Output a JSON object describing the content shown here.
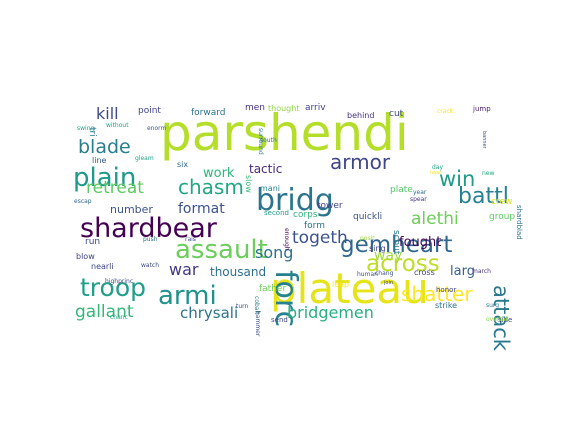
{
  "words": [
    {
      "text": "parshendi",
      "color": "#b5de2b"
    },
    {
      "text": "plateau",
      "color": "#e5e419"
    },
    {
      "text": "bridg",
      "color": "#2c738e"
    },
    {
      "text": "shardbear",
      "color": "#440154"
    },
    {
      "text": "forc",
      "color": "#26828e"
    },
    {
      "text": "assault",
      "color": "#6ccd5a"
    },
    {
      "text": "armi",
      "color": "#20928c"
    },
    {
      "text": "gemheart",
      "color": "#31668e"
    },
    {
      "text": "troop",
      "color": "#1f9e89"
    },
    {
      "text": "plain",
      "color": "#1f9a8a"
    },
    {
      "text": "battl",
      "color": "#26828e"
    },
    {
      "text": "chasm",
      "color": "#22a785"
    },
    {
      "text": "armor",
      "color": "#404588"
    },
    {
      "text": "blade",
      "color": "#277f8e"
    },
    {
      "text": "retreat",
      "color": "#5ec962"
    },
    {
      "text": "across",
      "color": "#bddf26"
    },
    {
      "text": "win",
      "color": "#1e9c89"
    },
    {
      "text": "attack",
      "color": "#2a788e"
    },
    {
      "text": "shatter",
      "color": "#fde725"
    },
    {
      "text": "togeth",
      "color": "#3b528b"
    },
    {
      "text": "alethi",
      "color": "#6ece58"
    },
    {
      "text": "kill",
      "color": "#3e4989"
    },
    {
      "text": "war",
      "color": "#453882"
    },
    {
      "text": "gallant",
      "color": "#35b779"
    },
    {
      "text": "chrysali",
      "color": "#2c728e"
    },
    {
      "text": "bridgemen",
      "color": "#29af7f"
    },
    {
      "text": "song",
      "color": "#2d708e"
    },
    {
      "text": "format",
      "color": "#3b528b"
    },
    {
      "text": "work",
      "color": "#2fb47c"
    },
    {
      "text": "tactic",
      "color": "#482878"
    },
    {
      "text": "way",
      "color": "#a0da39"
    },
    {
      "text": "fought",
      "color": "#440154"
    },
    {
      "text": "larg",
      "color": "#355f8d"
    },
    {
      "text": "thousand",
      "color": "#2d708e"
    },
    {
      "text": "number",
      "color": "#3b528b"
    },
    {
      "text": "point",
      "color": "#404588"
    },
    {
      "text": "forward",
      "color": "#2c728e"
    },
    {
      "text": "men",
      "color": "#46337f"
    },
    {
      "text": "thought",
      "color": "#8fd744"
    },
    {
      "text": "arriv",
      "color": "#414487"
    },
    {
      "text": "behind",
      "color": "#46337f"
    },
    {
      "text": "cut",
      "color": "#3e4989"
    },
    {
      "text": "jump",
      "color": "#481f70"
    },
    {
      "text": "crack",
      "color": "#fde725"
    },
    {
      "text": "tri",
      "color": "#2a788e"
    },
    {
      "text": "swing",
      "color": "#20a386"
    },
    {
      "text": "without",
      "color": "#20a386"
    },
    {
      "text": "enorm",
      "color": "#39568c"
    },
    {
      "text": "line",
      "color": "#39568c"
    },
    {
      "text": "gleam",
      "color": "#20a386"
    },
    {
      "text": "six",
      "color": "#31688e"
    },
    {
      "text": "surround",
      "color": "#2a788e"
    },
    {
      "text": "south",
      "color": "#2c728e"
    },
    {
      "text": "slow",
      "color": "#35b779"
    },
    {
      "text": "mani",
      "color": "#25848e"
    },
    {
      "text": "enough",
      "color": "#440154"
    },
    {
      "text": "tower",
      "color": "#414487"
    },
    {
      "text": "plate",
      "color": "#52c569"
    },
    {
      "text": "year",
      "color": "#31688e"
    },
    {
      "text": "spear",
      "color": "#46337f"
    },
    {
      "text": "day",
      "color": "#20a386"
    },
    {
      "text": "near",
      "color": "#fde725"
    },
    {
      "text": "new",
      "color": "#22a884"
    },
    {
      "text": "banner",
      "color": "#3b528b"
    },
    {
      "text": "crew",
      "color": "#d8e219"
    },
    {
      "text": "shardblad",
      "color": "#2c728e"
    },
    {
      "text": "group",
      "color": "#5ec962"
    },
    {
      "text": "escap",
      "color": "#31688e"
    },
    {
      "text": "corps",
      "color": "#2fb47c"
    },
    {
      "text": "second",
      "color": "#1f9e89"
    },
    {
      "text": "form",
      "color": "#2c728e"
    },
    {
      "text": "scout",
      "color": "#2a788e"
    },
    {
      "text": "quickli",
      "color": "#3b528b"
    },
    {
      "text": "run",
      "color": "#3e4989"
    },
    {
      "text": "push",
      "color": "#2c728e"
    },
    {
      "text": "rais",
      "color": "#3e4989"
    },
    {
      "text": "blow",
      "color": "#414487"
    },
    {
      "text": "nearli",
      "color": "#404588"
    },
    {
      "text": "watch",
      "color": "#3e4989"
    },
    {
      "text": "posit",
      "color": "#9fda3a"
    },
    {
      "text": "sing",
      "color": "#404588"
    },
    {
      "text": "leap",
      "color": "#fde725"
    },
    {
      "text": "human",
      "color": "#3b528b"
    },
    {
      "text": "chang",
      "color": "#3b528b"
    },
    {
      "text": "cross",
      "color": "#404588"
    },
    {
      "text": "march",
      "color": "#46337f"
    },
    {
      "text": "highprinc",
      "color": "#3e4989"
    },
    {
      "text": "father",
      "color": "#6ece58"
    },
    {
      "text": "cobalt",
      "color": "#26828e"
    },
    {
      "text": "join",
      "color": "#404588"
    },
    {
      "text": "honor",
      "color": "#404588"
    },
    {
      "text": "strike",
      "color": "#2c728e"
    },
    {
      "text": "surg",
      "color": "#2a788e"
    },
    {
      "text": "turn",
      "color": "#3e4989"
    },
    {
      "text": "hammer",
      "color": "#3b528b"
    },
    {
      "text": "send",
      "color": "#3e4989"
    },
    {
      "text": "side",
      "color": "#404588"
    },
    {
      "text": "overtak",
      "color": "#8fd744"
    },
    {
      "text": "chanc",
      "color": "#20a386"
    }
  ]
}
